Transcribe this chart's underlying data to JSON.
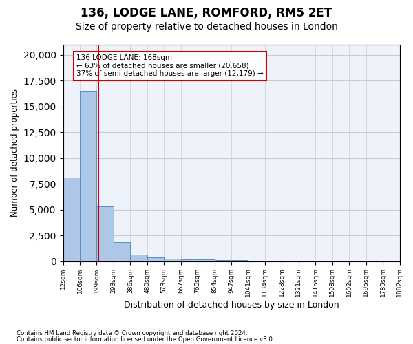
{
  "title1": "136, LODGE LANE, ROMFORD, RM5 2ET",
  "title2": "Size of property relative to detached houses in London",
  "xlabel": "Distribution of detached houses by size in London",
  "ylabel": "Number of detached properties",
  "bar_values": [
    8100,
    16500,
    5300,
    1850,
    650,
    350,
    270,
    200,
    200,
    130,
    80,
    60,
    40,
    30,
    20,
    15,
    10,
    8,
    5,
    3
  ],
  "categories": [
    "12sqm",
    "106sqm",
    "199sqm",
    "293sqm",
    "386sqm",
    "480sqm",
    "573sqm",
    "667sqm",
    "760sqm",
    "854sqm",
    "947sqm",
    "1041sqm",
    "1134sqm",
    "1228sqm",
    "1321sqm",
    "1415sqm",
    "1508sqm",
    "1602sqm",
    "1695sqm",
    "1789sqm",
    "1882sqm"
  ],
  "bar_color": "#aec6e8",
  "bar_edge_color": "#5a8fc4",
  "grid_color": "#cccccc",
  "background_color": "#eef2fb",
  "vline_x": 1.62,
  "vline_color": "#cc0000",
  "annotation_box_text": "136 LODGE LANE: 168sqm\n← 63% of detached houses are smaller (20,658)\n37% of semi-detached houses are larger (12,179) →",
  "annotation_box_color": "#cc0000",
  "ylim_max": 21000,
  "ylim_min": 0,
  "footer1": "Contains HM Land Registry data © Crown copyright and database right 2024.",
  "footer2": "Contains public sector information licensed under the Open Government Licence v3.0.",
  "title_fontsize": 12,
  "subtitle_fontsize": 10
}
